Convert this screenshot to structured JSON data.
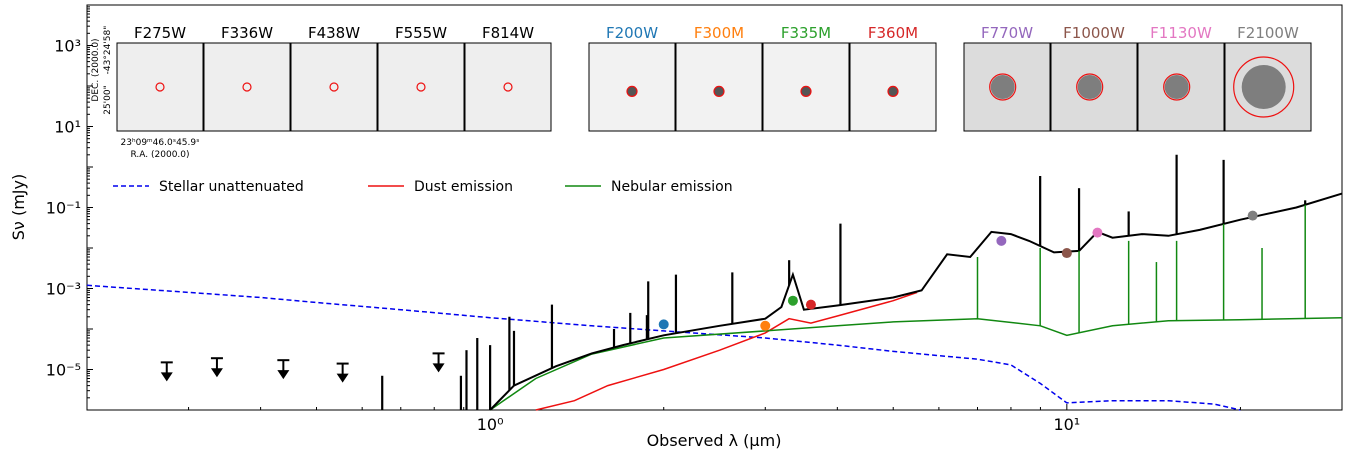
{
  "chart_data": {
    "type": "line",
    "xlabel": "Observed λ (μm)",
    "ylabel": "Sν (mJy)",
    "x_scale": "log",
    "y_scale": "log",
    "xlim": [
      0.2,
      30
    ],
    "ylim": [
      1e-06,
      10000
    ],
    "x_tick_labels": [
      {
        "value": 1,
        "label": "10⁰"
      },
      {
        "value": 10,
        "label": "10¹"
      }
    ],
    "y_tick_labels": [
      {
        "value": 1e-05,
        "label": "10⁻⁵"
      },
      {
        "value": 0.001,
        "label": "10⁻³"
      },
      {
        "value": 0.1,
        "label": "10⁻¹"
      },
      {
        "value": 10,
        "label": "10¹"
      },
      {
        "value": 1000,
        "label": "10³"
      }
    ],
    "legend": {
      "placement": "upper-left",
      "entries": [
        {
          "label": "Stellar unattenuated",
          "color": "#0000ee",
          "style": "dashed"
        },
        {
          "label": "Dust emission",
          "color": "#ee1111",
          "style": "solid"
        },
        {
          "label": "Nebular emission",
          "color": "#118811",
          "style": "solid"
        }
      ]
    },
    "series": [
      {
        "key": "stellar",
        "color": "#0000ee",
        "style": "dashed",
        "x": [
          0.2,
          0.3,
          0.4,
          0.5,
          0.7,
          1.0,
          1.5,
          2,
          3,
          4,
          5,
          7,
          8,
          9,
          10,
          12,
          15,
          18,
          20
        ],
        "y": [
          0.0012,
          0.0008,
          0.0006,
          0.00045,
          0.0003,
          0.00019,
          0.00012,
          9e-05,
          6e-05,
          4e-05,
          2.8e-05,
          1.8e-05,
          1.3e-05,
          4.5e-06,
          1.5e-06,
          1.7e-06,
          1.7e-06,
          1.4e-06,
          1e-06
        ]
      },
      {
        "key": "dust",
        "color": "#ee1111",
        "style": "solid",
        "x": [
          1.2,
          1.4,
          1.6,
          2.0,
          2.5,
          3.0,
          3.3,
          3.6,
          4.0,
          5.0,
          5.5
        ],
        "y": [
          1e-06,
          1.7e-06,
          4e-06,
          1e-05,
          3e-05,
          8e-05,
          0.00018,
          0.00014,
          0.00021,
          0.0005,
          0.0008
        ]
      },
      {
        "key": "nebular",
        "color": "#118811",
        "style": "solid",
        "x": [
          1.0,
          1.2,
          1.5,
          2.0,
          3.0,
          4.0,
          5.0,
          7.0,
          9.0,
          10.0,
          12.0,
          15.0,
          20.0,
          30.0
        ],
        "y": [
          1e-06,
          6e-06,
          2.4e-05,
          6e-05,
          9e-05,
          0.00012,
          0.00015,
          0.00018,
          0.00012,
          7e-05,
          0.00012,
          0.00016,
          0.00017,
          0.00019
        ]
      },
      {
        "key": "total",
        "color": "#000000",
        "style": "solid",
        "x": [
          1.0,
          1.1,
          1.3,
          1.5,
          1.7,
          2.0,
          2.5,
          3.0,
          3.2,
          3.35,
          3.5,
          4.0,
          5.0,
          5.6,
          6.2,
          6.8,
          7.4,
          8.0,
          8.6,
          9.5,
          10.5,
          11.3,
          12.0,
          13.5,
          15.0,
          17.0,
          20.0,
          25.0,
          30.0
        ],
        "y": [
          1e-06,
          4e-06,
          1.2e-05,
          2.5e-05,
          4e-05,
          7e-05,
          0.00012,
          0.00018,
          0.00035,
          0.0022,
          0.0003,
          0.00038,
          0.0006,
          0.0009,
          0.007,
          0.006,
          0.025,
          0.022,
          0.015,
          0.0078,
          0.0085,
          0.025,
          0.018,
          0.022,
          0.02,
          0.028,
          0.05,
          0.1,
          0.22
        ]
      }
    ],
    "total_emission_lines": [
      {
        "x": 0.65,
        "y": 7e-06
      },
      {
        "x": 0.89,
        "y": 7e-06
      },
      {
        "x": 0.91,
        "y": 3e-05
      },
      {
        "x": 0.95,
        "y": 6e-05
      },
      {
        "x": 1.0,
        "y": 4e-05
      },
      {
        "x": 1.08,
        "y": 0.0002
      },
      {
        "x": 1.1,
        "y": 9e-05
      },
      {
        "x": 1.28,
        "y": 0.0004
      },
      {
        "x": 1.64,
        "y": 0.0001
      },
      {
        "x": 1.75,
        "y": 0.00025
      },
      {
        "x": 1.87,
        "y": 0.00022
      },
      {
        "x": 1.88,
        "y": 0.0015
      },
      {
        "x": 2.1,
        "y": 0.0022
      },
      {
        "x": 2.63,
        "y": 0.0025
      },
      {
        "x": 3.3,
        "y": 0.005
      },
      {
        "x": 4.05,
        "y": 0.04
      },
      {
        "x": 7.0,
        "y": 0.01
      },
      {
        "x": 8.99,
        "y": 0.6
      },
      {
        "x": 10.5,
        "y": 0.3
      },
      {
        "x": 12.8,
        "y": 0.08
      },
      {
        "x": 15.5,
        "y": 2
      },
      {
        "x": 18.7,
        "y": 1.5
      },
      {
        "x": 25.9,
        "y": 0.15
      }
    ],
    "nebular_emission_lines": [
      {
        "x": 7.0,
        "y": 0.006
      },
      {
        "x": 8.99,
        "y": 0.01
      },
      {
        "x": 10.5,
        "y": 0.01
      },
      {
        "x": 12.8,
        "y": 0.015
      },
      {
        "x": 14.3,
        "y": 0.0045
      },
      {
        "x": 15.5,
        "y": 0.015
      },
      {
        "x": 18.7,
        "y": 0.06
      },
      {
        "x": 21.8,
        "y": 0.01
      },
      {
        "x": 25.9,
        "y": 0.15
      }
    ],
    "photometry": [
      {
        "band": "F200W",
        "x": 2.0,
        "y": 0.00013,
        "color": "#1f77b4"
      },
      {
        "band": "F300M",
        "x": 3.0,
        "y": 0.00012,
        "color": "#ff7f0e"
      },
      {
        "band": "F335M",
        "x": 3.35,
        "y": 0.0005,
        "color": "#2ca02c"
      },
      {
        "band": "F360M",
        "x": 3.6,
        "y": 0.0004,
        "color": "#d62728"
      },
      {
        "band": "F770W",
        "x": 7.7,
        "y": 0.015,
        "color": "#9467bd"
      },
      {
        "band": "F1000W",
        "x": 10.0,
        "y": 0.0075,
        "color": "#8c564b"
      },
      {
        "band": "F1130W",
        "x": 11.3,
        "y": 0.024,
        "color": "#e377c2"
      },
      {
        "band": "F2100W",
        "x": 21.0,
        "y": 0.063,
        "color": "#7f7f7f"
      }
    ],
    "upper_limits": [
      {
        "x": 0.275,
        "y": 1.5e-05
      },
      {
        "x": 0.336,
        "y": 1.9e-05
      },
      {
        "x": 0.438,
        "y": 1.7e-05
      },
      {
        "x": 0.555,
        "y": 1.4e-05
      },
      {
        "x": 0.814,
        "y": 2.5e-05
      }
    ],
    "cutouts": {
      "hst": [
        {
          "label": "F275W",
          "color": "#000000"
        },
        {
          "label": "F336W",
          "color": "#000000"
        },
        {
          "label": "F438W",
          "color": "#000000"
        },
        {
          "label": "F555W",
          "color": "#000000"
        },
        {
          "label": "F814W",
          "color": "#000000"
        }
      ],
      "nircam": [
        {
          "label": "F200W",
          "color": "#1f77b4"
        },
        {
          "label": "F300M",
          "color": "#ff7f0e"
        },
        {
          "label": "F335M",
          "color": "#2ca02c"
        },
        {
          "label": "F360M",
          "color": "#d62728"
        }
      ],
      "miri": [
        {
          "label": "F770W",
          "color": "#9467bd"
        },
        {
          "label": "F1000W",
          "color": "#8c564b"
        },
        {
          "label": "F1130W",
          "color": "#e377c2"
        },
        {
          "label": "F2100W",
          "color": "#7f7f7f"
        }
      ],
      "dec_axis_label": "DEC. (2000.0)",
      "dec_ticks": [
        "-43°24'58\"",
        "25'00\""
      ],
      "ra_axis_label": "R.A. (2000.0)",
      "ra_ticks": "23ʰ09ᵐ46.0ˢ45.9ˢ"
    }
  }
}
